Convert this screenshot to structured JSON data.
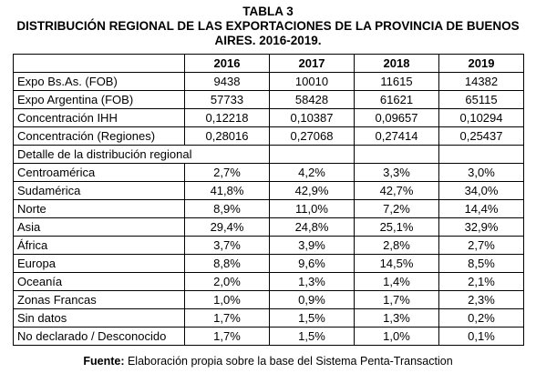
{
  "title": {
    "line1": "TABLA 3",
    "line2": "DISTRIBUCIÓN REGIONAL DE LAS EXPORTACIONES DE LA PROVINCIA DE BUENOS",
    "line3": "AIRES. 2016-2019."
  },
  "table": {
    "header": [
      "",
      "2016",
      "2017",
      "2018",
      "2019"
    ],
    "top_rows": [
      {
        "label": "Expo Bs.As. (FOB)",
        "values": [
          "9438",
          "10010",
          "11615",
          "14382"
        ]
      },
      {
        "label": "Expo Argentina (FOB)",
        "values": [
          "57733",
          "58428",
          "61621",
          "65115"
        ]
      },
      {
        "label": "Concentración IHH",
        "values": [
          "0,12218",
          "0,10387",
          "0,09657",
          "0,10294"
        ]
      },
      {
        "label": "Concentración (Regiones)",
        "values": [
          "0,28016",
          "0,27068",
          "0,27414",
          "0,25437"
        ]
      }
    ],
    "section_label": "Detalle de la distribución regional",
    "region_rows": [
      {
        "label": "Centroamérica",
        "values": [
          "2,7%",
          "4,2%",
          "3,3%",
          "3,0%"
        ]
      },
      {
        "label": "Sudamérica",
        "values": [
          "41,8%",
          "42,9%",
          "42,7%",
          "34,0%"
        ]
      },
      {
        "label": "Norte",
        "values": [
          "8,9%",
          "11,0%",
          "7,2%",
          "14,4%"
        ]
      },
      {
        "label": "Asia",
        "values": [
          "29,4%",
          "24,8%",
          "25,1%",
          "32,9%"
        ]
      },
      {
        "label": "África",
        "values": [
          "3,7%",
          "3,9%",
          "2,8%",
          "2,7%"
        ]
      },
      {
        "label": "Europa",
        "values": [
          "8,8%",
          "9,6%",
          "14,5%",
          "8,5%"
        ]
      },
      {
        "label": "Oceanía",
        "values": [
          "2,0%",
          "1,3%",
          "1,4%",
          "2,1%"
        ]
      },
      {
        "label": "Zonas Francas",
        "values": [
          "1,0%",
          "0,9%",
          "1,7%",
          "2,3%"
        ]
      },
      {
        "label": "Sin datos",
        "values": [
          "1,7%",
          "1,5%",
          "1,3%",
          "0,2%"
        ]
      },
      {
        "label": "No declarado / Desconocido",
        "values": [
          "1,7%",
          "1,5%",
          "1,0%",
          "0,1%"
        ]
      }
    ]
  },
  "source": {
    "label": "Fuente:",
    "text": "Elaboración propia sobre la base del Sistema Penta-Transaction"
  }
}
